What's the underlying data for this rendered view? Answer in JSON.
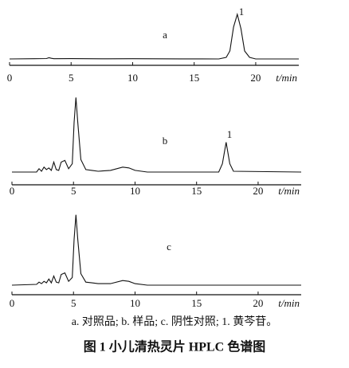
{
  "chart_data": [
    {
      "type": "line",
      "title": "a",
      "annotations": [
        "1"
      ],
      "x_label": "t/min",
      "xlim": [
        0,
        23.5
      ],
      "xticks": [
        0,
        5,
        10,
        15,
        20
      ],
      "ylim": [
        0,
        60
      ],
      "color": "#111111",
      "x": [
        0,
        2,
        3,
        3.2,
        3.4,
        3.6,
        5,
        8,
        10,
        14,
        17,
        17.6,
        17.9,
        18.2,
        18.5,
        18.8,
        19.1,
        19.5,
        20,
        23.5
      ],
      "values": [
        0,
        0.3,
        0.5,
        1.5,
        0.8,
        0.3,
        0.4,
        0.2,
        0.3,
        0.1,
        0,
        2,
        10,
        40,
        56,
        38,
        10,
        2,
        0,
        0
      ]
    },
    {
      "type": "line",
      "title": "b",
      "annotations": [
        "1"
      ],
      "x_label": "t/min",
      "xlim": [
        0,
        23.5
      ],
      "xticks": [
        0,
        5,
        10,
        15,
        20
      ],
      "ylim": [
        0,
        100
      ],
      "color": "#111111",
      "x": [
        0,
        2,
        2.2,
        2.4,
        2.6,
        2.8,
        3,
        3.2,
        3.4,
        3.6,
        3.8,
        4,
        4.3,
        4.6,
        4.9,
        5.05,
        5.2,
        5.35,
        5.6,
        6,
        6.5,
        7,
        8,
        9,
        9.5,
        10,
        11,
        16.8,
        17.1,
        17.4,
        17.7,
        18,
        23.5
      ],
      "values": [
        0,
        0,
        4,
        1,
        6,
        3,
        5,
        2,
        12,
        3,
        2,
        12,
        14,
        4,
        10,
        60,
        90,
        60,
        15,
        3,
        2,
        1,
        2,
        6,
        5,
        2,
        0,
        0,
        10,
        36,
        10,
        1,
        0
      ]
    },
    {
      "type": "line",
      "title": "c",
      "x_label": "t/min",
      "xlim": [
        0,
        23.5
      ],
      "xticks": [
        0,
        5,
        10,
        15,
        20
      ],
      "ylim": [
        0,
        100
      ],
      "color": "#111111",
      "x": [
        0,
        2,
        2.2,
        2.4,
        2.6,
        2.8,
        3,
        3.2,
        3.4,
        3.6,
        3.8,
        4,
        4.3,
        4.6,
        4.9,
        5.05,
        5.2,
        5.35,
        5.6,
        6,
        6.5,
        7,
        8,
        9,
        9.5,
        10,
        11,
        23.5
      ],
      "values": [
        0,
        1,
        4,
        2,
        5,
        3,
        8,
        3,
        12,
        4,
        3,
        14,
        16,
        5,
        10,
        60,
        92,
        60,
        15,
        4,
        3,
        2,
        2,
        6,
        5,
        2,
        0,
        0
      ]
    }
  ],
  "figure": {
    "legend": "a. 对照品; b. 样品; c. 阴性对照; 1. 黄芩苷。",
    "caption": "图 1 小儿清热灵片 HPLC 色谱图"
  }
}
